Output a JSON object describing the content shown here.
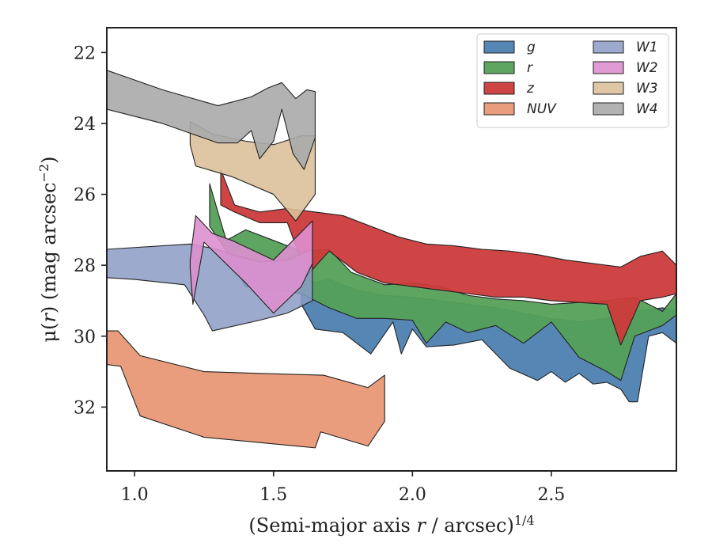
{
  "chart_data": {
    "type": "area",
    "title": "",
    "xlabel_parts": [
      "(Semi-major axis ",
      "r",
      " / arcsec)",
      "1/4"
    ],
    "ylabel_parts": [
      "μ(",
      "r",
      ") (mag arcsec",
      "−2",
      ")"
    ],
    "xlim": [
      0.9,
      2.95
    ],
    "ylim": [
      33.8,
      21.3
    ],
    "y_inverted": true,
    "xticks": [
      1.0,
      1.5,
      2.0,
      2.5
    ],
    "xtick_labels": [
      "1.0",
      "1.5",
      "2.0",
      "2.5"
    ],
    "yticks": [
      22,
      24,
      26,
      28,
      30,
      32
    ],
    "ytick_labels": [
      "22",
      "24",
      "26",
      "28",
      "30",
      "32"
    ],
    "grid": false,
    "legend": {
      "position": "top-right",
      "columns": 2
    },
    "series": [
      {
        "name": "g",
        "color": "#4c7fb0",
        "alpha": 0.95,
        "upper": [
          [
            1.6,
            28.55
          ],
          [
            1.7,
            28.4
          ],
          [
            1.8,
            28.7
          ],
          [
            1.9,
            28.85
          ],
          [
            2.0,
            28.9
          ],
          [
            2.1,
            29.0
          ],
          [
            2.2,
            29.1
          ],
          [
            2.3,
            29.2
          ],
          [
            2.4,
            29.35
          ],
          [
            2.5,
            29.5
          ],
          [
            2.6,
            29.6
          ],
          [
            2.7,
            29.5
          ],
          [
            2.8,
            29.3
          ],
          [
            2.9,
            29.2
          ],
          [
            2.95,
            29.3
          ]
        ],
        "lower": [
          [
            1.6,
            29.1
          ],
          [
            1.65,
            29.8
          ],
          [
            1.75,
            29.9
          ],
          [
            1.85,
            30.5
          ],
          [
            1.93,
            29.6
          ],
          [
            1.96,
            30.5
          ],
          [
            2.0,
            29.8
          ],
          [
            2.05,
            30.3
          ],
          [
            2.15,
            30.25
          ],
          [
            2.25,
            30.1
          ],
          [
            2.35,
            30.9
          ],
          [
            2.45,
            31.25
          ],
          [
            2.5,
            31.0
          ],
          [
            2.55,
            31.3
          ],
          [
            2.6,
            31.05
          ],
          [
            2.65,
            31.35
          ],
          [
            2.7,
            31.3
          ],
          [
            2.75,
            31.5
          ],
          [
            2.78,
            31.85
          ],
          [
            2.81,
            31.85
          ],
          [
            2.85,
            30.0
          ],
          [
            2.9,
            29.9
          ],
          [
            2.95,
            30.2
          ]
        ]
      },
      {
        "name": "r",
        "color": "#55a05a",
        "alpha": 0.95,
        "upper": [
          [
            1.27,
            25.7
          ],
          [
            1.33,
            27.3
          ],
          [
            1.4,
            27.0
          ],
          [
            1.5,
            27.3
          ],
          [
            1.6,
            27.6
          ],
          [
            1.7,
            27.55
          ],
          [
            1.78,
            28.2
          ],
          [
            1.9,
            28.55
          ],
          [
            2.0,
            28.5
          ],
          [
            2.1,
            28.6
          ],
          [
            2.2,
            28.85
          ],
          [
            2.3,
            28.95
          ],
          [
            2.4,
            29.0
          ],
          [
            2.5,
            29.1
          ],
          [
            2.6,
            29.05
          ],
          [
            2.7,
            29.0
          ],
          [
            2.8,
            28.9
          ],
          [
            2.9,
            29.3
          ],
          [
            2.95,
            28.8
          ]
        ],
        "lower": [
          [
            1.27,
            26.9
          ],
          [
            1.33,
            27.6
          ],
          [
            1.4,
            28.6
          ],
          [
            1.5,
            28.7
          ],
          [
            1.6,
            28.8
          ],
          [
            1.7,
            29.2
          ],
          [
            1.8,
            29.5
          ],
          [
            1.9,
            29.5
          ],
          [
            2.0,
            29.55
          ],
          [
            2.05,
            30.2
          ],
          [
            2.12,
            29.6
          ],
          [
            2.2,
            29.9
          ],
          [
            2.3,
            29.7
          ],
          [
            2.4,
            30.2
          ],
          [
            2.5,
            29.6
          ],
          [
            2.6,
            30.6
          ],
          [
            2.7,
            31.0
          ],
          [
            2.75,
            31.25
          ],
          [
            2.8,
            30.0
          ],
          [
            2.85,
            29.85
          ],
          [
            2.9,
            29.7
          ],
          [
            2.95,
            29.4
          ]
        ]
      },
      {
        "name": "z",
        "color": "#cc3a3a",
        "alpha": 0.95,
        "upper": [
          [
            1.31,
            25.3
          ],
          [
            1.36,
            26.3
          ],
          [
            1.45,
            26.5
          ],
          [
            1.55,
            26.4
          ],
          [
            1.65,
            26.5
          ],
          [
            1.75,
            26.6
          ],
          [
            1.85,
            26.9
          ],
          [
            1.95,
            27.2
          ],
          [
            2.05,
            27.4
          ],
          [
            2.15,
            27.45
          ],
          [
            2.25,
            27.55
          ],
          [
            2.35,
            27.6
          ],
          [
            2.45,
            27.7
          ],
          [
            2.55,
            27.85
          ],
          [
            2.65,
            27.95
          ],
          [
            2.75,
            28.05
          ],
          [
            2.82,
            27.75
          ],
          [
            2.9,
            27.6
          ],
          [
            2.95,
            28.0
          ]
        ],
        "lower": [
          [
            1.31,
            26.3
          ],
          [
            1.36,
            26.5
          ],
          [
            1.45,
            26.8
          ],
          [
            1.55,
            26.8
          ],
          [
            1.62,
            28.3
          ],
          [
            1.7,
            27.6
          ],
          [
            1.8,
            28.2
          ],
          [
            1.9,
            28.5
          ],
          [
            2.0,
            28.6
          ],
          [
            2.1,
            28.7
          ],
          [
            2.2,
            28.8
          ],
          [
            2.3,
            28.9
          ],
          [
            2.4,
            28.9
          ],
          [
            2.5,
            29.0
          ],
          [
            2.6,
            29.05
          ],
          [
            2.7,
            29.1
          ],
          [
            2.75,
            30.25
          ],
          [
            2.82,
            29.0
          ],
          [
            2.9,
            28.9
          ],
          [
            2.95,
            28.8
          ]
        ]
      },
      {
        "name": "NUV",
        "color": "#e8926e",
        "alpha": 0.9,
        "upper": [
          [
            0.9,
            29.85
          ],
          [
            0.94,
            29.85
          ],
          [
            1.02,
            30.55
          ],
          [
            1.25,
            31.0
          ],
          [
            1.45,
            31.05
          ],
          [
            1.68,
            31.1
          ],
          [
            1.84,
            31.45
          ],
          [
            1.9,
            31.1
          ]
        ],
        "lower": [
          [
            0.9,
            30.8
          ],
          [
            0.95,
            30.85
          ],
          [
            1.02,
            32.25
          ],
          [
            1.25,
            32.85
          ],
          [
            1.45,
            33.0
          ],
          [
            1.65,
            33.15
          ],
          [
            1.67,
            32.7
          ],
          [
            1.84,
            33.1
          ],
          [
            1.9,
            32.4
          ]
        ]
      },
      {
        "name": "W1",
        "color": "#8b9cc4",
        "alpha": 0.85,
        "upper": [
          [
            0.9,
            27.55
          ],
          [
            1.2,
            27.4
          ],
          [
            1.3,
            27.55
          ],
          [
            1.35,
            27.7
          ],
          [
            1.45,
            27.9
          ],
          [
            1.55,
            27.85
          ],
          [
            1.64,
            27.55
          ]
        ],
        "lower": [
          [
            0.9,
            28.35
          ],
          [
            1.0,
            28.4
          ],
          [
            1.18,
            28.55
          ],
          [
            1.25,
            29.4
          ],
          [
            1.28,
            29.85
          ],
          [
            1.45,
            29.55
          ],
          [
            1.55,
            29.35
          ],
          [
            1.64,
            29.0
          ]
        ]
      },
      {
        "name": "W2",
        "color": "#dd8fcf",
        "alpha": 0.9,
        "upper": [
          [
            1.2,
            27.85
          ],
          [
            1.22,
            26.6
          ],
          [
            1.28,
            27.1
          ],
          [
            1.35,
            27.3
          ],
          [
            1.5,
            27.85
          ],
          [
            1.64,
            26.75
          ]
        ],
        "lower": [
          [
            1.2,
            28.1
          ],
          [
            1.21,
            29.1
          ],
          [
            1.25,
            27.35
          ],
          [
            1.4,
            28.5
          ],
          [
            1.5,
            29.35
          ],
          [
            1.6,
            28.6
          ],
          [
            1.64,
            27.95
          ]
        ]
      },
      {
        "name": "W3",
        "color": "#dcc09a",
        "alpha": 0.9,
        "upper": [
          [
            1.2,
            23.95
          ],
          [
            1.28,
            24.3
          ],
          [
            1.4,
            24.5
          ],
          [
            1.5,
            24.6
          ],
          [
            1.6,
            24.35
          ],
          [
            1.65,
            24.35
          ]
        ],
        "lower": [
          [
            1.2,
            24.6
          ],
          [
            1.22,
            25.2
          ],
          [
            1.35,
            25.5
          ],
          [
            1.5,
            26.0
          ],
          [
            1.58,
            26.75
          ],
          [
            1.65,
            26.0
          ]
        ]
      },
      {
        "name": "W4",
        "color": "#aaaaaa",
        "alpha": 0.9,
        "upper": [
          [
            0.9,
            22.5
          ],
          [
            1.1,
            23.05
          ],
          [
            1.3,
            23.5
          ],
          [
            1.35,
            23.4
          ],
          [
            1.42,
            23.25
          ],
          [
            1.48,
            23.0
          ],
          [
            1.53,
            22.85
          ],
          [
            1.58,
            23.3
          ],
          [
            1.62,
            23.05
          ],
          [
            1.65,
            23.1
          ]
        ],
        "lower": [
          [
            0.9,
            23.6
          ],
          [
            1.1,
            24.0
          ],
          [
            1.3,
            24.55
          ],
          [
            1.37,
            24.55
          ],
          [
            1.42,
            24.2
          ],
          [
            1.45,
            25.0
          ],
          [
            1.5,
            24.5
          ],
          [
            1.53,
            23.6
          ],
          [
            1.57,
            24.85
          ],
          [
            1.61,
            25.3
          ],
          [
            1.65,
            24.4
          ]
        ]
      }
    ]
  }
}
